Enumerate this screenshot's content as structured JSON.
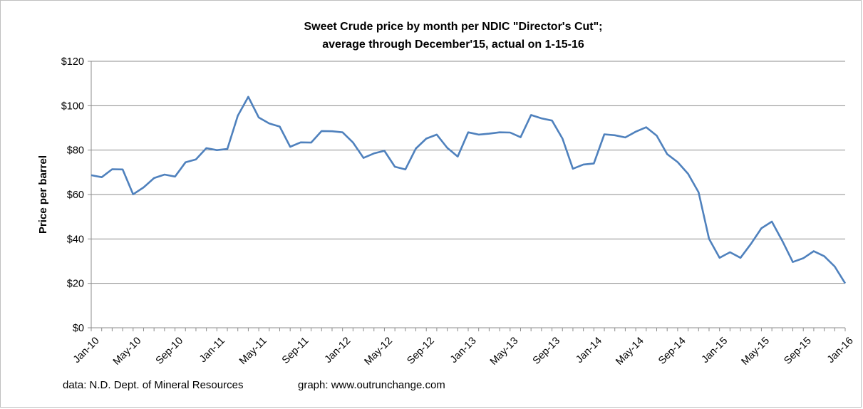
{
  "chart_data": {
    "type": "line",
    "title_lines": [
      "Sweet Crude price by month per NDIC \"Director's Cut\";",
      "average through December'15, actual  on   1-15-16"
    ],
    "xlabel": "",
    "ylabel": "Price per barrel",
    "ylim": [
      0,
      120
    ],
    "y_ticks": [
      0,
      20,
      40,
      60,
      80,
      100,
      120
    ],
    "y_tick_labels": [
      "$0",
      "$20",
      "$40",
      "$60",
      "$80",
      "$100",
      "$120"
    ],
    "x_tick_labels": [
      "Jan-10",
      "May-10",
      "Sep-10",
      "Jan-11",
      "May-11",
      "Sep-11",
      "Jan-12",
      "May-12",
      "Sep-12",
      "Jan-13",
      "May-13",
      "Sep-13",
      "Jan-14",
      "May-14",
      "Sep-14",
      "Jan-15",
      "May-15",
      "Sep-15",
      "Jan-16"
    ],
    "categories": [
      "Jan-10",
      "Feb-10",
      "Mar-10",
      "Apr-10",
      "May-10",
      "Jun-10",
      "Jul-10",
      "Aug-10",
      "Sep-10",
      "Oct-10",
      "Nov-10",
      "Dec-10",
      "Jan-11",
      "Feb-11",
      "Mar-11",
      "Apr-11",
      "May-11",
      "Jun-11",
      "Jul-11",
      "Aug-11",
      "Sep-11",
      "Oct-11",
      "Nov-11",
      "Dec-11",
      "Jan-12",
      "Feb-12",
      "Mar-12",
      "Apr-12",
      "May-12",
      "Jun-12",
      "Jul-12",
      "Aug-12",
      "Sep-12",
      "Oct-12",
      "Nov-12",
      "Dec-12",
      "Jan-13",
      "Feb-13",
      "Mar-13",
      "Apr-13",
      "May-13",
      "Jun-13",
      "Jul-13",
      "Aug-13",
      "Sep-13",
      "Oct-13",
      "Nov-13",
      "Dec-13",
      "Jan-14",
      "Feb-14",
      "Mar-14",
      "Apr-14",
      "May-14",
      "Jun-14",
      "Jul-14",
      "Aug-14",
      "Sep-14",
      "Oct-14",
      "Nov-14",
      "Dec-14",
      "Jan-15",
      "Feb-15",
      "Mar-15",
      "Apr-15",
      "May-15",
      "Jun-15",
      "Jul-15",
      "Aug-15",
      "Sep-15",
      "Oct-15",
      "Nov-15",
      "Dec-15",
      "Jan-16"
    ],
    "series": [
      {
        "name": "",
        "color": "#4f81bd",
        "values": [
          68.7,
          67.8,
          71.4,
          71.3,
          60.1,
          63.2,
          67.4,
          69.0,
          68.1,
          74.5,
          75.8,
          80.9,
          80.0,
          80.5,
          95.5,
          104.0,
          94.7,
          92.0,
          90.6,
          81.5,
          83.5,
          83.4,
          88.6,
          88.5,
          88.0,
          83.4,
          76.5,
          78.5,
          79.7,
          72.5,
          71.3,
          80.7,
          85.2,
          87.0,
          81.0,
          77.1,
          88.0,
          87.0,
          87.4,
          88.0,
          87.9,
          85.8,
          95.8,
          94.3,
          93.3,
          85.2,
          71.6,
          73.5,
          74.0,
          87.1,
          86.7,
          85.7,
          88.3,
          90.3,
          86.5,
          78.2,
          74.6,
          69.3,
          61.0,
          40.0,
          31.5,
          34.0,
          31.5,
          37.8,
          44.8,
          47.8,
          39.1,
          29.6,
          31.3,
          34.5,
          32.2,
          27.6,
          20.0
        ]
      }
    ],
    "grid": true,
    "legend": "none",
    "footer_left": "data: N.D. Dept. of Mineral Resources",
    "footer_right": "graph:  www.outrunchange.com"
  }
}
